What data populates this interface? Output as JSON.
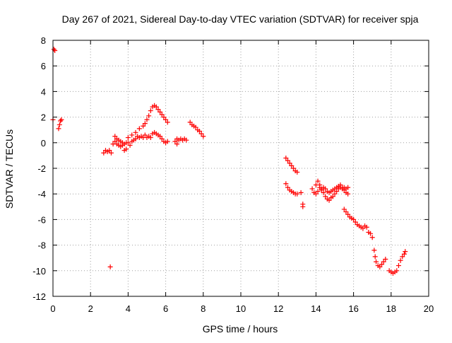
{
  "chart_data": {
    "type": "scatter",
    "title": "Day 267 of 2021, Sidereal Day-to-day VTEC variation (SDTVAR) for receiver spja",
    "xlabel": "GPS time / hours",
    "ylabel": "SDTVAR / TECUs",
    "xlim": [
      0,
      20
    ],
    "ylim": [
      -12,
      8
    ],
    "xticks": [
      "0",
      "2",
      "4",
      "6",
      "8",
      "10",
      "12",
      "14",
      "16",
      "18",
      "20"
    ],
    "yticks": [
      "8",
      "6",
      "4",
      "2",
      "0",
      "-2",
      "-4",
      "-6",
      "-8",
      "-10",
      "-12"
    ],
    "grid": true,
    "marker": "+",
    "marker_color": "#ff0000",
    "series": [
      {
        "name": "SDTVAR",
        "points": [
          [
            0.0,
            1.8
          ],
          [
            0.05,
            7.3
          ],
          [
            0.1,
            7.2
          ],
          [
            0.3,
            1.1
          ],
          [
            0.35,
            1.4
          ],
          [
            0.4,
            1.7
          ],
          [
            0.45,
            1.8
          ],
          [
            2.7,
            -0.8
          ],
          [
            2.8,
            -0.6
          ],
          [
            2.9,
            -0.7
          ],
          [
            3.0,
            -0.6
          ],
          [
            3.1,
            -0.8
          ],
          [
            3.05,
            -9.7
          ],
          [
            3.2,
            -0.1
          ],
          [
            3.3,
            0.1
          ],
          [
            3.4,
            -0.1
          ],
          [
            3.5,
            -0.2
          ],
          [
            3.6,
            -0.3
          ],
          [
            3.7,
            -0.2
          ],
          [
            3.8,
            -0.6
          ],
          [
            3.9,
            -0.5
          ],
          [
            3.3,
            0.5
          ],
          [
            3.4,
            0.3
          ],
          [
            3.5,
            0.2
          ],
          [
            3.6,
            0.1
          ],
          [
            3.7,
            0.0
          ],
          [
            3.8,
            -0.1
          ],
          [
            3.9,
            0.0
          ],
          [
            4.0,
            0.0
          ],
          [
            4.1,
            -0.2
          ],
          [
            4.2,
            0.1
          ],
          [
            4.3,
            0.2
          ],
          [
            4.4,
            0.3
          ],
          [
            4.5,
            0.5
          ],
          [
            4.6,
            0.4
          ],
          [
            4.7,
            0.5
          ],
          [
            4.8,
            0.4
          ],
          [
            4.9,
            0.6
          ],
          [
            5.0,
            0.4
          ],
          [
            5.1,
            0.5
          ],
          [
            5.2,
            0.4
          ],
          [
            5.3,
            0.7
          ],
          [
            5.4,
            0.8
          ],
          [
            5.5,
            0.7
          ],
          [
            5.6,
            0.6
          ],
          [
            5.7,
            0.5
          ],
          [
            5.8,
            0.3
          ],
          [
            5.9,
            0.1
          ],
          [
            6.0,
            0.0
          ],
          [
            6.1,
            0.1
          ],
          [
            4.0,
            0.4
          ],
          [
            4.2,
            0.6
          ],
          [
            4.4,
            0.8
          ],
          [
            4.6,
            1.1
          ],
          [
            4.8,
            1.3
          ],
          [
            4.9,
            1.5
          ],
          [
            5.0,
            1.8
          ],
          [
            5.1,
            2.1
          ],
          [
            5.2,
            2.5
          ],
          [
            5.3,
            2.8
          ],
          [
            5.4,
            2.9
          ],
          [
            5.5,
            2.8
          ],
          [
            5.6,
            2.6
          ],
          [
            5.7,
            2.4
          ],
          [
            5.8,
            2.2
          ],
          [
            5.9,
            2.0
          ],
          [
            6.0,
            1.8
          ],
          [
            6.1,
            1.6
          ],
          [
            6.5,
            0.1
          ],
          [
            6.6,
            0.3
          ],
          [
            6.7,
            0.2
          ],
          [
            6.8,
            0.3
          ],
          [
            6.9,
            0.2
          ],
          [
            7.0,
            0.3
          ],
          [
            7.1,
            0.2
          ],
          [
            6.6,
            -0.1
          ],
          [
            7.3,
            1.6
          ],
          [
            7.4,
            1.4
          ],
          [
            7.5,
            1.3
          ],
          [
            7.6,
            1.2
          ],
          [
            7.7,
            1.0
          ],
          [
            7.8,
            0.9
          ],
          [
            7.9,
            0.7
          ],
          [
            8.0,
            0.5
          ],
          [
            12.4,
            -1.2
          ],
          [
            12.5,
            -1.4
          ],
          [
            12.6,
            -1.6
          ],
          [
            12.7,
            -1.8
          ],
          [
            12.8,
            -2.0
          ],
          [
            12.9,
            -2.2
          ],
          [
            13.0,
            -2.3
          ],
          [
            12.4,
            -3.2
          ],
          [
            12.5,
            -3.5
          ],
          [
            12.6,
            -3.7
          ],
          [
            12.7,
            -3.8
          ],
          [
            12.8,
            -3.9
          ],
          [
            12.9,
            -4.0
          ],
          [
            13.0,
            -4.0
          ],
          [
            13.2,
            -3.9
          ],
          [
            13.3,
            -4.8
          ],
          [
            13.3,
            -5.0
          ],
          [
            13.8,
            -3.6
          ],
          [
            13.9,
            -3.9
          ],
          [
            14.0,
            -4.0
          ],
          [
            14.1,
            -3.8
          ],
          [
            14.2,
            -3.5
          ],
          [
            14.3,
            -3.7
          ],
          [
            14.4,
            -3.9
          ],
          [
            14.5,
            -4.2
          ],
          [
            14.6,
            -4.4
          ],
          [
            14.7,
            -4.5
          ],
          [
            14.8,
            -4.3
          ],
          [
            14.9,
            -4.2
          ],
          [
            15.0,
            -4.0
          ],
          [
            15.1,
            -3.8
          ],
          [
            15.2,
            -3.6
          ],
          [
            15.3,
            -3.5
          ],
          [
            15.4,
            -3.6
          ],
          [
            15.5,
            -3.7
          ],
          [
            15.6,
            -3.9
          ],
          [
            15.7,
            -4.0
          ],
          [
            14.0,
            -3.3
          ],
          [
            14.1,
            -3.0
          ],
          [
            14.2,
            -3.3
          ],
          [
            14.3,
            -3.6
          ],
          [
            14.4,
            -3.5
          ],
          [
            14.5,
            -3.6
          ],
          [
            14.6,
            -3.8
          ],
          [
            14.7,
            -3.9
          ],
          [
            14.8,
            -3.8
          ],
          [
            14.9,
            -3.7
          ],
          [
            15.0,
            -3.6
          ],
          [
            15.1,
            -3.5
          ],
          [
            15.2,
            -3.4
          ],
          [
            15.3,
            -3.3
          ],
          [
            15.4,
            -3.5
          ],
          [
            15.5,
            -3.5
          ],
          [
            15.6,
            -3.6
          ],
          [
            15.7,
            -3.5
          ],
          [
            15.5,
            -5.2
          ],
          [
            15.6,
            -5.4
          ],
          [
            15.7,
            -5.6
          ],
          [
            15.8,
            -5.8
          ],
          [
            15.9,
            -5.9
          ],
          [
            16.0,
            -6.0
          ],
          [
            16.1,
            -6.2
          ],
          [
            16.2,
            -6.4
          ],
          [
            16.3,
            -6.5
          ],
          [
            16.4,
            -6.6
          ],
          [
            16.5,
            -6.7
          ],
          [
            16.6,
            -6.5
          ],
          [
            16.7,
            -6.6
          ],
          [
            16.8,
            -7.0
          ],
          [
            16.9,
            -7.1
          ],
          [
            17.0,
            -7.4
          ],
          [
            17.1,
            -8.4
          ],
          [
            17.15,
            -8.9
          ],
          [
            17.2,
            -9.3
          ],
          [
            17.3,
            -9.6
          ],
          [
            17.4,
            -9.7
          ],
          [
            17.5,
            -9.5
          ],
          [
            17.6,
            -9.3
          ],
          [
            17.7,
            -9.1
          ],
          [
            17.9,
            -10.0
          ],
          [
            18.0,
            -10.1
          ],
          [
            18.1,
            -10.2
          ],
          [
            18.2,
            -10.1
          ],
          [
            18.3,
            -10.0
          ],
          [
            18.4,
            -9.6
          ],
          [
            18.5,
            -9.2
          ],
          [
            18.6,
            -8.9
          ],
          [
            18.7,
            -8.7
          ],
          [
            18.75,
            -8.5
          ]
        ]
      }
    ]
  }
}
